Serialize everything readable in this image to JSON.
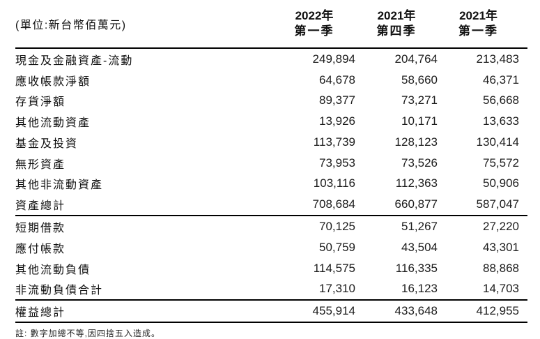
{
  "table": {
    "unit_label": "(單位:新台幣佰萬元)",
    "columns": [
      {
        "line1": "2022年",
        "line2": "第一季"
      },
      {
        "line1": "2021年",
        "line2": "第四季"
      },
      {
        "line1": "2021年",
        "line2": "第一季"
      }
    ],
    "rows": [
      {
        "label": "現金及金融資產-流動",
        "values": [
          "249,894",
          "204,764",
          "213,483"
        ]
      },
      {
        "label": "應收帳款淨額",
        "values": [
          "64,678",
          "58,660",
          "46,371"
        ]
      },
      {
        "label": "存貨淨額",
        "values": [
          "89,377",
          "73,271",
          "56,668"
        ]
      },
      {
        "label": "其他流動資產",
        "values": [
          "13,926",
          "10,171",
          "13,633"
        ]
      },
      {
        "label": "基金及投資",
        "values": [
          "113,739",
          "128,123",
          "130,414"
        ]
      },
      {
        "label": "無形資產",
        "values": [
          "73,953",
          "73,526",
          "75,572"
        ]
      },
      {
        "label": "其他非流動資產",
        "values": [
          "103,116",
          "112,363",
          "50,906"
        ]
      },
      {
        "label": "資產總計",
        "values": [
          "708,684",
          "660,877",
          "587,047"
        ]
      },
      {
        "label": "短期借款",
        "values": [
          "70,125",
          "51,267",
          "27,220"
        ]
      },
      {
        "label": "應付帳款",
        "values": [
          "50,759",
          "43,504",
          "43,301"
        ]
      },
      {
        "label": "其他流動負債",
        "values": [
          "114,575",
          "116,335",
          "88,868"
        ]
      },
      {
        "label": "非流動負債合計",
        "values": [
          "17,310",
          "16,123",
          "14,703"
        ]
      },
      {
        "label": "權益總計",
        "values": [
          "455,914",
          "433,648",
          "412,955"
        ]
      }
    ],
    "footnote": "註: 數字加總不等,因四捨五入造成。"
  }
}
